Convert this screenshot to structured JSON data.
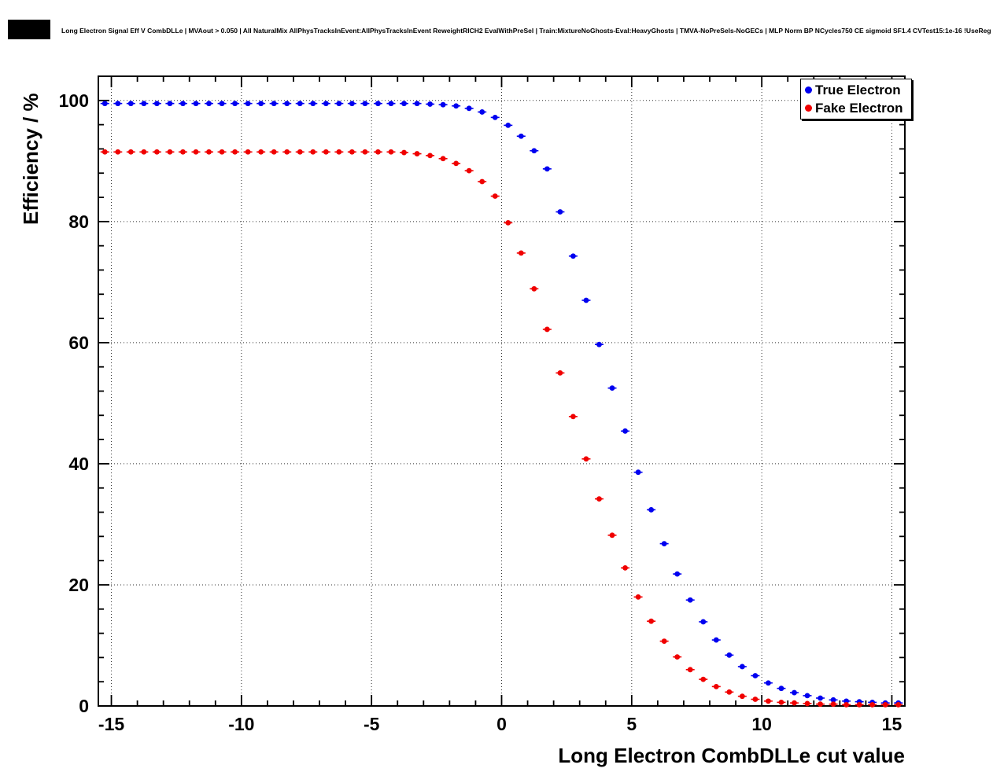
{
  "title": "Long Electron Signal Eff V CombDLLe | MVAout > 0.050 | All NaturalMix AllPhysTracksInEvent:AllPhysTracksInEvent ReweightRICH2 EvalWithPreSel | Train:MixtureNoGhosts-Eval:HeavyGhosts | TMVA-NoPreSels-NoGECs | MLP Norm BP NCycles750 CE sigmoid SF1.4 CVTest15:1e-16 !UseReg",
  "axes": {
    "x": {
      "label": "Long Electron CombDLLe cut value",
      "min": -15.5,
      "max": 15.5,
      "major_ticks": [
        -15,
        -10,
        -5,
        0,
        5,
        10,
        15
      ],
      "minor_tick_step": 1
    },
    "y": {
      "label": "Efficiency / %",
      "min": 0,
      "max": 104,
      "major_ticks": [
        0,
        20,
        40,
        60,
        80,
        100
      ],
      "minor_tick_step": 4
    }
  },
  "legend": {
    "items": [
      {
        "label": "True Electron",
        "color": "#0000f0"
      },
      {
        "label": "Fake Electron",
        "color": "#f00000"
      }
    ]
  },
  "chart_data": {
    "type": "scatter",
    "title": "Long Electron Signal Eff V CombDLLe | MVAout > 0.050",
    "xlabel": "Long Electron CombDLLe cut value",
    "ylabel": "Efficiency / %",
    "xlim": [
      -15.5,
      15.5
    ],
    "ylim": [
      0,
      104
    ],
    "grid": true,
    "grid_style": "dotted",
    "legend_position": "top-right",
    "marker": "filled-circle-with-horizontal-error-bars",
    "x": [
      -15.25,
      -14.75,
      -14.25,
      -13.75,
      -13.25,
      -12.75,
      -12.25,
      -11.75,
      -11.25,
      -10.75,
      -10.25,
      -9.75,
      -9.25,
      -8.75,
      -8.25,
      -7.75,
      -7.25,
      -6.75,
      -6.25,
      -5.75,
      -5.25,
      -4.75,
      -4.25,
      -3.75,
      -3.25,
      -2.75,
      -2.25,
      -1.75,
      -1.25,
      -0.75,
      -0.25,
      0.25,
      0.75,
      1.25,
      1.75,
      2.25,
      2.75,
      3.25,
      3.75,
      4.25,
      4.75,
      5.25,
      5.75,
      6.25,
      6.75,
      7.25,
      7.75,
      8.25,
      8.75,
      9.25,
      9.75,
      10.25,
      10.75,
      11.25,
      11.75,
      12.25,
      12.75,
      13.25,
      13.75,
      14.25,
      14.75,
      15.25
    ],
    "series": [
      {
        "name": "True Electron",
        "color": "#0000f0",
        "values": [
          99.5,
          99.5,
          99.5,
          99.5,
          99.5,
          99.5,
          99.5,
          99.5,
          99.5,
          99.5,
          99.5,
          99.5,
          99.5,
          99.5,
          99.5,
          99.5,
          99.5,
          99.5,
          99.5,
          99.5,
          99.5,
          99.5,
          99.5,
          99.5,
          99.5,
          99.4,
          99.3,
          99.1,
          98.7,
          98.1,
          97.2,
          95.9,
          94.1,
          91.7,
          88.7,
          81.6,
          74.3,
          67.0,
          59.7,
          52.5,
          45.4,
          38.6,
          32.4,
          26.8,
          21.8,
          17.5,
          13.9,
          10.9,
          8.4,
          6.5,
          5.0,
          3.8,
          2.9,
          2.2,
          1.7,
          1.3,
          1.0,
          0.8,
          0.7,
          0.6,
          0.5,
          0.5
        ]
      },
      {
        "name": "Fake Electron",
        "color": "#f00000",
        "values": [
          91.5,
          91.5,
          91.5,
          91.5,
          91.5,
          91.5,
          91.5,
          91.5,
          91.5,
          91.5,
          91.5,
          91.5,
          91.5,
          91.5,
          91.5,
          91.5,
          91.5,
          91.5,
          91.5,
          91.5,
          91.5,
          91.5,
          91.5,
          91.4,
          91.2,
          90.9,
          90.4,
          89.6,
          88.4,
          86.6,
          84.2,
          79.8,
          74.8,
          68.9,
          62.2,
          55.0,
          47.8,
          40.8,
          34.2,
          28.2,
          22.8,
          18.0,
          14.0,
          10.7,
          8.1,
          6.0,
          4.4,
          3.2,
          2.3,
          1.6,
          1.1,
          0.8,
          0.6,
          0.5,
          0.4,
          0.3,
          0.3,
          0.2,
          0.2,
          0.2,
          0.2,
          0.2
        ]
      }
    ]
  }
}
